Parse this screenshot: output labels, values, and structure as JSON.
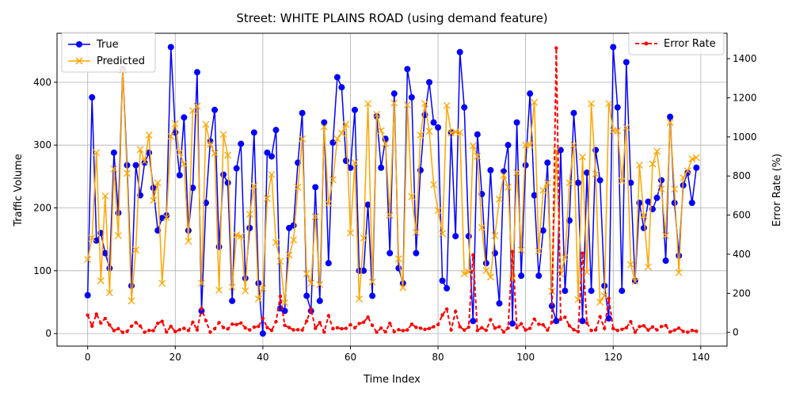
{
  "chart_data": {
    "type": "line",
    "title": "Street: WHITE PLAINS ROAD (using demand feature)",
    "xlabel": "Time Index",
    "ylabel": "Traffic Volume",
    "y2label": "Error Rate (%)",
    "xlim": [
      -7,
      146
    ],
    "ylim": [
      -20,
      478
    ],
    "y2lim": [
      -70,
      1530
    ],
    "x_ticks": [
      0,
      20,
      40,
      60,
      80,
      100,
      120,
      140
    ],
    "y_ticks": [
      0,
      100,
      200,
      300,
      400
    ],
    "y2_ticks": [
      0,
      200,
      400,
      600,
      800,
      1000,
      1200,
      1400
    ],
    "grid": true,
    "legend_left_placement": "upper-left",
    "legend_right_placement": "upper-right",
    "series": [
      {
        "name": "True",
        "axis": "left",
        "color": "#0000ff",
        "marker": "circle",
        "values": [
          61,
          376,
          148,
          160,
          128,
          104,
          288,
          192,
          421,
          268,
          76,
          268,
          220,
          272,
          288,
          232,
          164,
          184,
          188,
          456,
          320,
          252,
          344,
          164,
          232,
          416,
          36,
          208,
          306,
          356,
          138,
          253,
          240,
          52,
          263,
          302,
          88,
          168,
          320,
          80,
          0,
          288,
          282,
          324,
          40,
          36,
          168,
          172,
          272,
          351,
          60,
          36,
          233,
          52,
          336,
          112,
          304,
          408,
          392,
          275,
          264,
          356,
          100,
          100,
          205,
          60,
          346,
          264,
          310,
          128,
          382,
          104,
          80,
          421,
          376,
          128,
          260,
          348,
          400,
          336,
          328,
          84,
          72,
          320,
          155,
          448,
          360,
          155,
          20,
          317,
          222,
          112,
          260,
          128,
          48,
          258,
          300,
          16,
          336,
          92,
          268,
          382,
          220,
          92,
          164,
          272,
          44,
          20,
          292,
          68,
          180,
          351,
          240,
          20,
          256,
          68,
          292,
          244,
          76,
          24,
          456,
          360,
          68,
          432,
          240,
          84,
          208,
          168,
          210,
          198,
          216,
          244,
          116,
          345,
          208,
          124,
          236,
          256,
          208,
          264
        ]
      },
      {
        "name": "Predicted",
        "axis": "left",
        "color": "#ffa500",
        "marker": "x",
        "values": [
          118,
          152,
          288,
          84,
          219,
          65,
          262,
          156,
          420,
          255,
          52,
          133,
          293,
          274,
          316,
          212,
          240,
          80,
          185,
          314,
          334,
          288,
          270,
          147,
          355,
          362,
          80,
          333,
          301,
          287,
          69,
          317,
          284,
          74,
          157,
          155,
          68,
          190,
          235,
          55,
          72,
          215,
          253,
          145,
          115,
          49,
          125,
          149,
          233,
          310,
          95,
          80,
          186,
          78,
          329,
          207,
          245,
          310,
          319,
          333,
          160,
          272,
          55,
          152,
          366,
          82,
          349,
          323,
          302,
          188,
          367,
          119,
          73,
          364,
          218,
          161,
          316,
          366,
          322,
          237,
          196,
          159,
          363,
          319,
          321,
          320,
          95,
          98,
          299,
          282,
          169,
          100,
          90,
          156,
          214,
          252,
          233,
          87,
          256,
          133,
          300,
          300,
          368,
          131,
          228,
          240,
          67,
          291,
          95,
          121,
          240,
          300,
          54,
          281,
          98,
          366,
          254,
          50,
          60,
          366,
          323,
          323,
          243,
          328,
          110,
          83,
          268,
          188,
          106,
          270,
          290,
          230,
          156,
          336,
          230,
          97,
          248,
          259,
          278,
          280
        ]
      },
      {
        "name": "Error Rate",
        "axis": "right",
        "color": "#ff0000",
        "marker": "dot",
        "values": [
          88,
          32,
          94,
          48,
          71,
          38,
          9,
          19,
          0,
          5,
          32,
          50,
          33,
          1,
          10,
          9,
          46,
          57,
          2,
          31,
          4,
          14,
          21,
          10,
          52,
          13,
          122,
          60,
          1,
          19,
          50,
          25,
          18,
          42,
          40,
          48,
          23,
          13,
          27,
          31,
          72,
          25,
          10,
          55,
          185,
          36,
          25,
          13,
          14,
          12,
          58,
          120,
          21,
          50,
          2,
          85,
          19,
          24,
          19,
          21,
          39,
          24,
          45,
          52,
          78,
          36,
          1,
          22,
          3,
          46,
          4,
          14,
          9,
          13,
          42,
          26,
          22,
          16,
          20,
          29,
          40,
          89,
          119,
          13,
          107,
          29,
          12,
          27,
          396,
          10,
          24,
          11,
          65,
          22,
          29,
          2,
          22,
          413,
          24,
          44,
          12,
          21,
          68,
          42,
          39,
          12,
          52,
          1455,
          67,
          78,
          34,
          14,
          4,
          405,
          48,
          10,
          13,
          80,
          21,
          174,
          20,
          10,
          16,
          24,
          55,
          1,
          30,
          34,
          12,
          28,
          13,
          30,
          35,
          3,
          11,
          22,
          5,
          1,
          10,
          6
        ]
      }
    ]
  }
}
